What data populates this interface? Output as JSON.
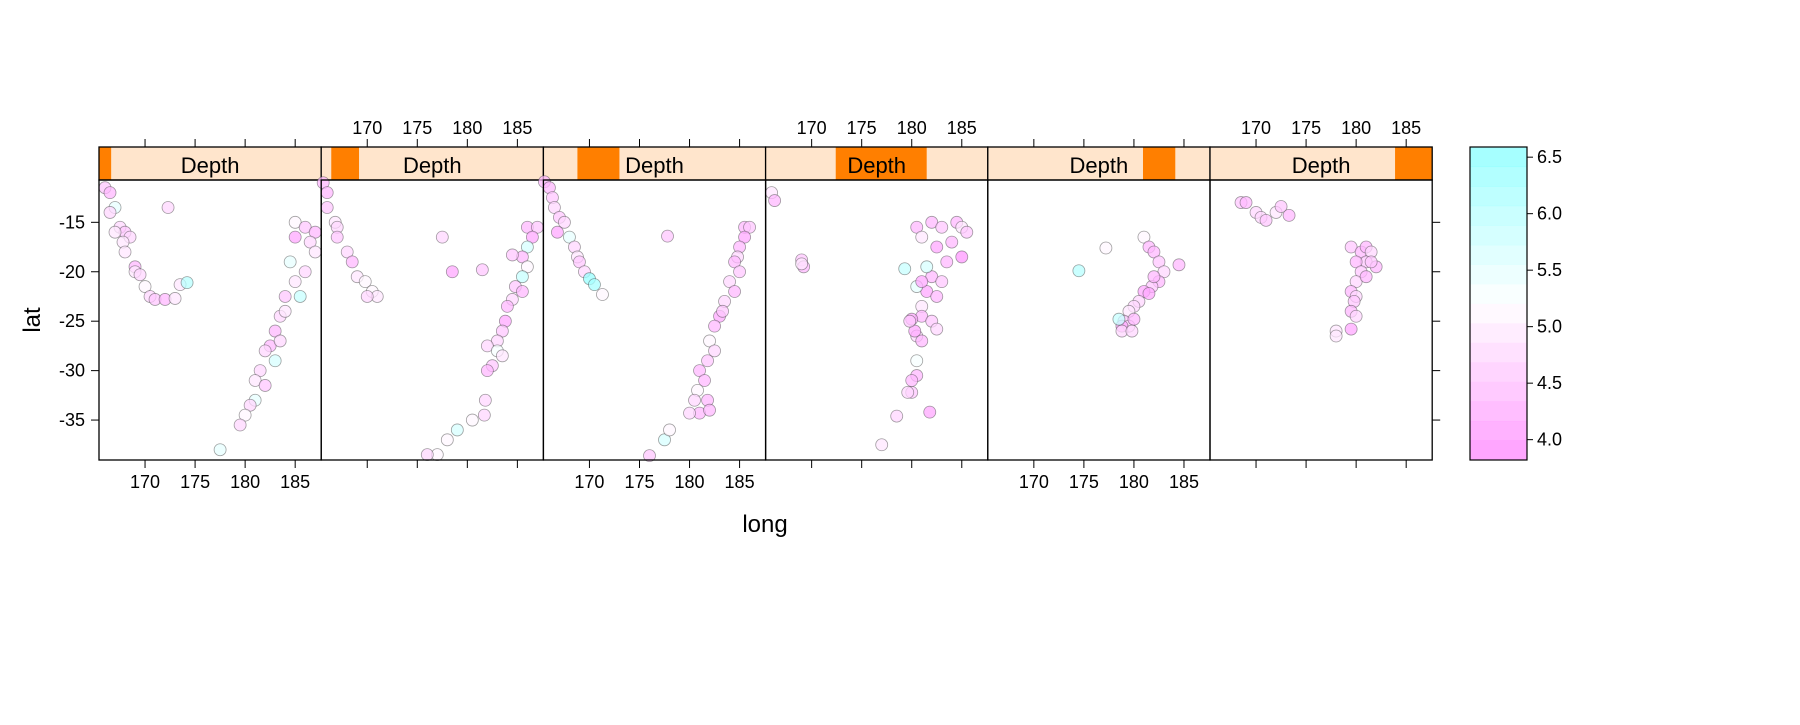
{
  "chart_data": {
    "type": "scatter",
    "xlabel": "long",
    "ylabel": "lat",
    "strip_label": "Depth",
    "xlim": [
      165.4,
      187.6
    ],
    "ylim": [
      -39.04,
      -10.72
    ],
    "xticks": [
      170,
      175,
      180,
      185
    ],
    "yticks": [
      -15,
      -20,
      -25,
      -30,
      -35
    ],
    "grid": false,
    "colorkey": {
      "range": [
        3.82,
        6.59
      ],
      "ticks": [
        4.0,
        4.5,
        5.0,
        5.5,
        6.0,
        6.5
      ],
      "low_color": "#FF80FF",
      "mid_color": "#FFFFFF",
      "high_color": "#80FFFF",
      "placement": "right"
    },
    "strip_colors": {
      "background": "#FFE5CC",
      "shingle": "#FF7F00"
    },
    "panels": [
      {
        "depth_range": [
          40,
          75
        ],
        "points": [
          [
            166,
            -11.5,
            4.6
          ],
          [
            166.5,
            -12,
            4.4
          ],
          [
            167,
            -13.5,
            5.4
          ],
          [
            166.5,
            -14,
            4.8
          ],
          [
            167.5,
            -15.5,
            4.7
          ],
          [
            168,
            -16,
            4.6
          ],
          [
            167,
            -16,
            4.9
          ],
          [
            168.5,
            -16.5,
            4.7
          ],
          [
            167.8,
            -17,
            4.9
          ],
          [
            168,
            -18,
            5.0
          ],
          [
            169,
            -19.5,
            4.5
          ],
          [
            169,
            -20,
            5.0
          ],
          [
            169.5,
            -20.3,
            4.7
          ],
          [
            170,
            -21.5,
            5.1
          ],
          [
            170.5,
            -22.5,
            4.7
          ],
          [
            171,
            -22.8,
            4.6
          ],
          [
            172,
            -22.8,
            4.4
          ],
          [
            173,
            -22.7,
            5.0
          ],
          [
            173.5,
            -21.3,
            5.0
          ],
          [
            174.2,
            -21.1,
            6.0
          ],
          [
            172.3,
            -13.5,
            4.8
          ],
          [
            185,
            -15,
            5.1
          ],
          [
            186,
            -15.5,
            4.6
          ],
          [
            187,
            -16,
            4.5
          ],
          [
            186.5,
            -17,
            4.7
          ],
          [
            187,
            -18,
            4.9
          ],
          [
            185,
            -16.5,
            4.2
          ],
          [
            184.5,
            -19,
            5.4
          ],
          [
            186,
            -20,
            4.8
          ],
          [
            185,
            -21,
            4.9
          ],
          [
            185.5,
            -22.5,
            5.8
          ],
          [
            184,
            -22.5,
            4.6
          ],
          [
            183.5,
            -24.5,
            4.7
          ],
          [
            184,
            -24,
            5.0
          ],
          [
            183,
            -26,
            4.5
          ],
          [
            182.5,
            -27.5,
            4.4
          ],
          [
            183.5,
            -27,
            4.7
          ],
          [
            182,
            -28,
            4.8
          ],
          [
            183,
            -29,
            5.6
          ],
          [
            181.5,
            -30,
            4.7
          ],
          [
            181,
            -31,
            4.9
          ],
          [
            182,
            -31.5,
            4.6
          ],
          [
            181,
            -33,
            5.5
          ],
          [
            180.5,
            -33.5,
            4.8
          ],
          [
            180,
            -34.5,
            5.1
          ],
          [
            179.5,
            -35.5,
            4.7
          ],
          [
            177.5,
            -38,
            5.4
          ]
        ]
      },
      {
        "depth_range": [
          69,
          149
        ],
        "points": [
          [
            165.6,
            -11,
            4.5
          ],
          [
            166,
            -12,
            4.4
          ],
          [
            166,
            -13.5,
            4.6
          ],
          [
            166.8,
            -15,
            5.0
          ],
          [
            167,
            -15.5,
            4.7
          ],
          [
            167,
            -16.5,
            4.6
          ],
          [
            168,
            -18,
            4.8
          ],
          [
            168.5,
            -19,
            4.5
          ],
          [
            169,
            -20.5,
            4.9
          ],
          [
            169.8,
            -21,
            5.1
          ],
          [
            170.5,
            -22,
            5.2
          ],
          [
            171,
            -22.5,
            4.9
          ],
          [
            170,
            -22.5,
            4.7
          ],
          [
            177.5,
            -16.5,
            4.7
          ],
          [
            178.5,
            -20,
            4.2
          ],
          [
            181.5,
            -19.8,
            4.6
          ],
          [
            186,
            -15.5,
            4.4
          ],
          [
            187,
            -15.5,
            4.6
          ],
          [
            186.5,
            -16.5,
            4.3
          ],
          [
            186,
            -17.5,
            5.7
          ],
          [
            185.5,
            -18.5,
            4.5
          ],
          [
            184.5,
            -18.3,
            4.6
          ],
          [
            186,
            -19.5,
            5.1
          ],
          [
            185.5,
            -20.5,
            5.8
          ],
          [
            184.8,
            -21.5,
            4.6
          ],
          [
            185.5,
            -22,
            4.4
          ],
          [
            184.5,
            -22.8,
            4.7
          ],
          [
            184,
            -23.5,
            4.5
          ],
          [
            183.8,
            -25,
            4.3
          ],
          [
            183.5,
            -26,
            4.6
          ],
          [
            183,
            -27,
            4.8
          ],
          [
            182,
            -27.5,
            4.7
          ],
          [
            183,
            -28,
            5.3
          ],
          [
            183.5,
            -28.5,
            4.9
          ],
          [
            182.5,
            -29.5,
            4.6
          ],
          [
            182,
            -30,
            4.5
          ],
          [
            181.8,
            -33,
            4.7
          ],
          [
            181.7,
            -34.5,
            4.8
          ],
          [
            180.5,
            -35,
            5.1
          ],
          [
            179,
            -36,
            5.7
          ],
          [
            178,
            -37,
            5.1
          ],
          [
            177,
            -38.5,
            5.2
          ],
          [
            176,
            -38.5,
            4.8
          ]
        ]
      },
      {
        "depth_range": [
          138,
          259
        ],
        "points": [
          [
            165.5,
            -10.9,
            4.5
          ],
          [
            166,
            -11.5,
            4.4
          ],
          [
            166.3,
            -12.5,
            4.6
          ],
          [
            166.5,
            -13.5,
            4.7
          ],
          [
            167,
            -14.5,
            4.6
          ],
          [
            167.5,
            -15,
            4.8
          ],
          [
            166.8,
            -16,
            4.3
          ],
          [
            168,
            -16.5,
            5.4
          ],
          [
            168.5,
            -17.5,
            4.8
          ],
          [
            168.8,
            -18.5,
            5.0
          ],
          [
            169,
            -19,
            4.6
          ],
          [
            169.5,
            -20,
            4.7
          ],
          [
            170,
            -20.7,
            6.3
          ],
          [
            170.5,
            -21.3,
            6.1
          ],
          [
            171.3,
            -22.3,
            5.2
          ],
          [
            177.8,
            -16.4,
            4.6
          ],
          [
            185.5,
            -15.5,
            4.5
          ],
          [
            186,
            -15.5,
            4.6
          ],
          [
            185.5,
            -16.5,
            4.3
          ],
          [
            185,
            -17.5,
            4.5
          ],
          [
            184.8,
            -18.5,
            4.7
          ],
          [
            184.5,
            -19,
            4.4
          ],
          [
            185,
            -20,
            4.6
          ],
          [
            184,
            -21,
            4.8
          ],
          [
            184.5,
            -22,
            4.4
          ],
          [
            183.5,
            -23,
            4.7
          ],
          [
            183,
            -24.5,
            4.3
          ],
          [
            183.3,
            -24,
            4.6
          ],
          [
            182.5,
            -25.5,
            4.5
          ],
          [
            182,
            -27,
            5.1
          ],
          [
            182.5,
            -28,
            4.7
          ],
          [
            181.8,
            -29,
            4.6
          ],
          [
            181,
            -30,
            4.4
          ],
          [
            181.5,
            -31,
            4.5
          ],
          [
            180.8,
            -32,
            5.2
          ],
          [
            180.5,
            -33,
            4.8
          ],
          [
            181.8,
            -33,
            4.5
          ],
          [
            181,
            -34.3,
            4.4
          ],
          [
            182,
            -34,
            4.5
          ],
          [
            180,
            -34.3,
            4.7
          ],
          [
            177.5,
            -37,
            5.7
          ],
          [
            178,
            -36,
            5.1
          ],
          [
            176,
            -38.6,
            4.6
          ]
        ]
      },
      {
        "depth_range": [
          242,
          504
        ],
        "points": [
          [
            166,
            -12,
            5.0
          ],
          [
            166.3,
            -12.8,
            4.4
          ],
          [
            169,
            -18.8,
            4.6
          ],
          [
            169.2,
            -19.5,
            4.5
          ],
          [
            169,
            -19.2,
            4.9
          ],
          [
            179.3,
            -19.7,
            5.8
          ],
          [
            177,
            -37.5,
            5.0
          ],
          [
            178.5,
            -34.6,
            4.7
          ],
          [
            181.8,
            -34.2,
            4.3
          ],
          [
            180.5,
            -15.5,
            4.5
          ],
          [
            182,
            -15,
            4.4
          ],
          [
            183,
            -15.5,
            4.6
          ],
          [
            184.5,
            -15,
            4.5
          ],
          [
            185,
            -15.5,
            4.9
          ],
          [
            185.5,
            -16,
            4.6
          ],
          [
            184,
            -17,
            4.4
          ],
          [
            182.5,
            -17.5,
            4.3
          ],
          [
            181,
            -16.5,
            5.0
          ],
          [
            185,
            -18.5,
            4.1
          ],
          [
            183.5,
            -19,
            4.5
          ],
          [
            182,
            -20.5,
            4.4
          ],
          [
            183,
            -21,
            4.6
          ],
          [
            181.5,
            -22,
            4.3
          ],
          [
            180.5,
            -21.5,
            5.4
          ],
          [
            182.5,
            -22.5,
            4.5
          ],
          [
            181,
            -23.5,
            4.9
          ],
          [
            181,
            -24.5,
            4.5
          ],
          [
            180,
            -24.8,
            4.2
          ],
          [
            182,
            -25,
            4.6
          ],
          [
            180.5,
            -26.5,
            4.7
          ],
          [
            181,
            -27,
            4.4
          ],
          [
            182.5,
            -25.8,
            4.8
          ],
          [
            180.5,
            -29,
            5.3
          ],
          [
            180.5,
            -30.5,
            4.4
          ],
          [
            180,
            -31,
            4.5
          ],
          [
            180,
            -32.2,
            4.6
          ],
          [
            179.6,
            -32.2,
            4.7
          ],
          [
            181,
            -21,
            4.2
          ],
          [
            180.3,
            -26,
            4.3
          ],
          [
            179.8,
            -25,
            4.6
          ],
          [
            181.5,
            -19.5,
            5.6
          ]
        ]
      },
      {
        "depth_range": [
          487,
          580
        ],
        "points": [
          [
            174.5,
            -19.9,
            6.0
          ],
          [
            177.2,
            -17.6,
            5.2
          ],
          [
            181,
            -16.5,
            5.1
          ],
          [
            181.5,
            -17.5,
            4.5
          ],
          [
            182,
            -18,
            4.4
          ],
          [
            182.5,
            -19,
            4.6
          ],
          [
            183,
            -20,
            4.7
          ],
          [
            182.5,
            -21,
            4.5
          ],
          [
            181.8,
            -21.5,
            4.6
          ],
          [
            181,
            -22,
            4.3
          ],
          [
            180.5,
            -23,
            4.8
          ],
          [
            180,
            -23.5,
            4.7
          ],
          [
            179.5,
            -24,
            4.9
          ],
          [
            179,
            -25,
            4.6
          ],
          [
            179.5,
            -25.5,
            4.8
          ],
          [
            180,
            -24.8,
            4.5
          ],
          [
            178.8,
            -25.5,
            4.2
          ],
          [
            178.8,
            -26,
            4.7
          ],
          [
            179.8,
            -26,
            4.8
          ],
          [
            184.5,
            -19.3,
            4.4
          ],
          [
            182,
            -20.5,
            4.5
          ],
          [
            181.5,
            -22.2,
            4.3
          ],
          [
            178.5,
            -24.8,
            5.8
          ]
        ]
      },
      {
        "depth_range": [
          573,
          680
        ],
        "points": [
          [
            168.5,
            -13,
            4.6
          ],
          [
            169,
            -13,
            4.5
          ],
          [
            170,
            -14,
            4.8
          ],
          [
            170.5,
            -14.5,
            4.7
          ],
          [
            171,
            -14.8,
            4.6
          ],
          [
            172,
            -14,
            5.0
          ],
          [
            172.5,
            -13.4,
            4.6
          ],
          [
            173.3,
            -14.3,
            4.4
          ],
          [
            179.5,
            -17.5,
            4.6
          ],
          [
            180.5,
            -18,
            4.5
          ],
          [
            181,
            -17.5,
            4.4
          ],
          [
            181.5,
            -18,
            4.7
          ],
          [
            181,
            -19,
            4.6
          ],
          [
            182,
            -19.5,
            4.5
          ],
          [
            180,
            -19,
            4.4
          ],
          [
            180.5,
            -20,
            4.6
          ],
          [
            180,
            -21,
            4.7
          ],
          [
            179.5,
            -22,
            4.5
          ],
          [
            180,
            -22.5,
            4.8
          ],
          [
            179.8,
            -23,
            4.6
          ],
          [
            179.5,
            -24,
            4.5
          ],
          [
            180,
            -24.5,
            4.7
          ],
          [
            179.5,
            -25.8,
            4.3
          ],
          [
            178,
            -26,
            5.0
          ],
          [
            178,
            -26.5,
            4.9
          ],
          [
            181,
            -20.5,
            4.4
          ],
          [
            181.5,
            -19,
            4.6
          ]
        ]
      }
    ]
  }
}
